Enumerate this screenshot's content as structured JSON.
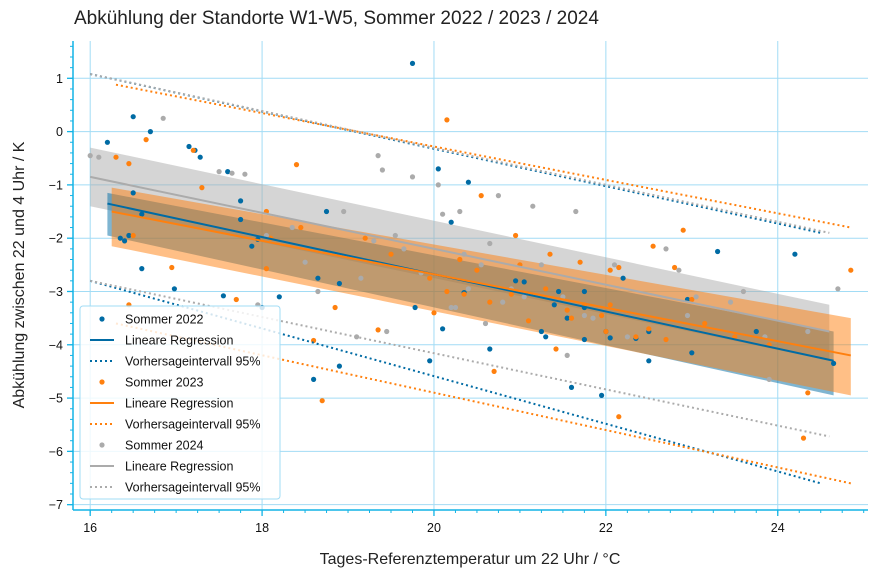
{
  "chart_data": {
    "type": "scatter",
    "title": "Abkühlung der Standorte W1-W5, Sommer 2022 / 2023 / 2024",
    "xlabel": "Tages-Referenztemperatur um 22 Uhr / °C",
    "ylabel": "Abkühlung zwischen 22 und 4 Uhr / K",
    "xlim": [
      15.8,
      25.05
    ],
    "ylim": [
      -7.1,
      1.7
    ],
    "xticks": [
      "16",
      "18",
      "20",
      "22",
      "24"
    ],
    "yticks": [
      "1",
      "0",
      "−1",
      "−2",
      "−3",
      "−4",
      "−5",
      "−6",
      "−7"
    ],
    "grid": true,
    "legend_position": "lower-left",
    "colors": {
      "s2022": "#006ba4",
      "s2023": "#ff800e",
      "s2024": "#ababab",
      "grid": "#a2dcf5",
      "axis": "#12b4e6"
    },
    "series": [
      {
        "name": "Sommer 2022",
        "color": "#006ba4",
        "points": [
          [
            16.2,
            -0.2
          ],
          [
            16.35,
            -2.0
          ],
          [
            16.4,
            -2.05
          ],
          [
            16.45,
            -1.95
          ],
          [
            16.5,
            -1.15
          ],
          [
            16.5,
            0.28
          ],
          [
            16.6,
            -1.55
          ],
          [
            16.6,
            -2.57
          ],
          [
            16.7,
            0.0
          ],
          [
            16.98,
            -2.95
          ],
          [
            17.15,
            -0.28
          ],
          [
            17.22,
            -0.35
          ],
          [
            17.28,
            -0.48
          ],
          [
            17.55,
            -3.08
          ],
          [
            17.6,
            -0.75
          ],
          [
            17.75,
            -1.65
          ],
          [
            17.75,
            -1.3
          ],
          [
            17.88,
            -2.15
          ],
          [
            17.95,
            -2.02
          ],
          [
            18.0,
            -3.3
          ],
          [
            18.2,
            -3.1
          ],
          [
            18.6,
            -4.65
          ],
          [
            18.65,
            -2.75
          ],
          [
            18.75,
            -1.5
          ],
          [
            18.9,
            -4.4
          ],
          [
            18.9,
            -2.85
          ],
          [
            19.75,
            1.28
          ],
          [
            19.78,
            -3.3
          ],
          [
            19.95,
            -4.3
          ],
          [
            20.05,
            -0.7
          ],
          [
            20.1,
            -3.7
          ],
          [
            20.2,
            -1.7
          ],
          [
            20.35,
            -3.02
          ],
          [
            20.4,
            -0.95
          ],
          [
            20.65,
            -4.08
          ],
          [
            20.95,
            -2.8
          ],
          [
            21.05,
            -2.82
          ],
          [
            21.25,
            -3.75
          ],
          [
            21.3,
            -3.85
          ],
          [
            21.4,
            -3.25
          ],
          [
            21.45,
            -3.0
          ],
          [
            21.55,
            -3.5
          ],
          [
            21.6,
            -4.8
          ],
          [
            21.75,
            -3.0
          ],
          [
            21.75,
            -3.9
          ],
          [
            21.75,
            -3.3
          ],
          [
            21.95,
            -4.95
          ],
          [
            22.0,
            -3.75
          ],
          [
            22.05,
            -3.87
          ],
          [
            22.2,
            -2.75
          ],
          [
            22.35,
            -3.88
          ],
          [
            22.5,
            -4.3
          ],
          [
            22.5,
            -3.75
          ],
          [
            22.95,
            -3.15
          ],
          [
            23.0,
            -4.15
          ],
          [
            23.3,
            -2.25
          ],
          [
            23.75,
            -3.75
          ],
          [
            24.2,
            -2.3
          ],
          [
            24.65,
            -4.35
          ]
        ],
        "regression": {
          "name": "Lineare Regression",
          "x": [
            16.2,
            24.65
          ],
          "y": [
            -1.35,
            -4.3
          ]
        },
        "ci95": {
          "x": [
            16.2,
            24.65
          ],
          "upper": [
            -1.15,
            -3.75
          ],
          "lower": [
            -1.95,
            -4.95
          ]
        },
        "pred95": {
          "name": "Vorhersageintervall 95%",
          "x": [
            16.0,
            24.5
          ],
          "upper": [
            1.08,
            -1.9
          ],
          "lower": [
            -2.8,
            -6.6
          ]
        }
      },
      {
        "name": "Sommer 2023",
        "color": "#ff800e",
        "points": [
          [
            16.3,
            -0.48
          ],
          [
            16.45,
            -0.6
          ],
          [
            16.45,
            -3.25
          ],
          [
            16.65,
            -0.15
          ],
          [
            16.95,
            -2.55
          ],
          [
            17.2,
            -0.35
          ],
          [
            17.3,
            -1.05
          ],
          [
            17.7,
            -3.15
          ],
          [
            18.05,
            -2.57
          ],
          [
            18.05,
            -1.5
          ],
          [
            18.4,
            -0.62
          ],
          [
            18.45,
            -1.8
          ],
          [
            18.6,
            -3.92
          ],
          [
            18.7,
            -5.05
          ],
          [
            18.85,
            -3.3
          ],
          [
            19.2,
            -2.0
          ],
          [
            19.35,
            -3.72
          ],
          [
            19.95,
            -2.75
          ],
          [
            20.15,
            -3.0
          ],
          [
            20.15,
            0.22
          ],
          [
            20.3,
            -2.4
          ],
          [
            20.35,
            -3.05
          ],
          [
            20.5,
            -2.6
          ],
          [
            20.55,
            -1.2
          ],
          [
            20.65,
            -3.2
          ],
          [
            20.7,
            -4.5
          ],
          [
            20.9,
            -3.05
          ],
          [
            20.95,
            -1.95
          ],
          [
            21.1,
            -3.55
          ],
          [
            21.3,
            -2.95
          ],
          [
            21.35,
            -2.3
          ],
          [
            21.42,
            -4.08
          ],
          [
            21.55,
            -3.35
          ],
          [
            21.6,
            -3.5
          ],
          [
            21.75,
            -3.25
          ],
          [
            21.95,
            -3.45
          ],
          [
            22.0,
            -3.75
          ],
          [
            22.05,
            -2.6
          ],
          [
            22.05,
            -3.25
          ],
          [
            22.15,
            -2.55
          ],
          [
            22.15,
            -5.35
          ],
          [
            22.35,
            -3.85
          ],
          [
            22.55,
            -2.15
          ],
          [
            22.7,
            -3.9
          ],
          [
            22.9,
            -1.85
          ],
          [
            23.0,
            -3.15
          ],
          [
            23.15,
            -3.6
          ],
          [
            23.5,
            -3.85
          ],
          [
            24.3,
            -5.75
          ],
          [
            24.35,
            -4.9
          ],
          [
            24.85,
            -2.6
          ],
          [
            22.5,
            -3.7
          ],
          [
            21.7,
            -2.45
          ],
          [
            20.0,
            -3.4
          ],
          [
            18.1,
            -2.0
          ],
          [
            16.5,
            -1.95
          ],
          [
            22.8,
            -2.55
          ],
          [
            23.9,
            -4.0
          ],
          [
            19.5,
            -2.3
          ],
          [
            21.0,
            -2.5
          ]
        ],
        "regression": {
          "name": "Lineare Regression",
          "x": [
            16.25,
            24.85
          ],
          "y": [
            -1.5,
            -4.2
          ]
        },
        "ci95": {
          "x": [
            16.25,
            24.85
          ],
          "upper": [
            -1.05,
            -3.5
          ],
          "lower": [
            -2.15,
            -4.95
          ]
        },
        "pred95": {
          "name": "Vorhersageintervall 95%",
          "x": [
            16.3,
            24.85
          ],
          "upper": [
            0.88,
            -1.8
          ],
          "lower": [
            -3.6,
            -6.6
          ]
        }
      },
      {
        "name": "Sommer 2024",
        "color": "#ababab",
        "points": [
          [
            16.0,
            -0.45
          ],
          [
            16.1,
            -0.48
          ],
          [
            16.85,
            0.25
          ],
          [
            17.5,
            -0.75
          ],
          [
            17.65,
            -0.78
          ],
          [
            17.8,
            -0.8
          ],
          [
            17.95,
            -3.25
          ],
          [
            18.05,
            -1.95
          ],
          [
            18.5,
            -2.45
          ],
          [
            18.65,
            -3.0
          ],
          [
            18.95,
            -1.5
          ],
          [
            19.1,
            -3.85
          ],
          [
            19.15,
            -2.75
          ],
          [
            19.3,
            -2.05
          ],
          [
            19.35,
            -0.45
          ],
          [
            19.4,
            -0.72
          ],
          [
            19.55,
            -1.95
          ],
          [
            19.65,
            -2.2
          ],
          [
            19.75,
            -0.85
          ],
          [
            19.85,
            -2.65
          ],
          [
            20.05,
            -1.0
          ],
          [
            20.1,
            -1.55
          ],
          [
            20.2,
            -3.3
          ],
          [
            20.25,
            -3.3
          ],
          [
            20.3,
            -1.5
          ],
          [
            20.35,
            -2.3
          ],
          [
            20.4,
            -2.95
          ],
          [
            20.55,
            -2.5
          ],
          [
            20.65,
            -2.1
          ],
          [
            20.75,
            -1.2
          ],
          [
            20.8,
            -3.2
          ],
          [
            20.9,
            -2.95
          ],
          [
            21.05,
            -3.1
          ],
          [
            21.15,
            -1.4
          ],
          [
            21.25,
            -2.5
          ],
          [
            21.5,
            -3.1
          ],
          [
            21.55,
            -4.2
          ],
          [
            21.65,
            -1.5
          ],
          [
            21.75,
            -3.45
          ],
          [
            21.85,
            -3.5
          ],
          [
            22.1,
            -2.5
          ],
          [
            22.25,
            -3.85
          ],
          [
            22.7,
            -2.2
          ],
          [
            22.85,
            -2.6
          ],
          [
            22.95,
            -3.45
          ],
          [
            23.05,
            -3.1
          ],
          [
            23.45,
            -3.2
          ],
          [
            23.85,
            -3.85
          ],
          [
            23.9,
            -4.65
          ],
          [
            24.35,
            -3.75
          ],
          [
            24.7,
            -2.95
          ],
          [
            19.45,
            -3.75
          ],
          [
            18.35,
            -1.8
          ],
          [
            20.6,
            -3.6
          ],
          [
            23.6,
            -3.0
          ]
        ],
        "regression": {
          "name": "Lineare Regression",
          "x": [
            16.0,
            24.6
          ],
          "y": [
            -0.85,
            -3.75
          ]
        },
        "ci95": {
          "x": [
            16.0,
            24.6
          ],
          "upper": [
            -0.3,
            -3.25
          ],
          "lower": [
            -1.4,
            -4.3
          ]
        },
        "pred95": {
          "name": "Vorhersageintervall 95%",
          "x": [
            16.0,
            24.6
          ],
          "upper": [
            1.08,
            -1.9
          ],
          "lower": [
            -2.8,
            -5.72
          ]
        }
      }
    ]
  }
}
